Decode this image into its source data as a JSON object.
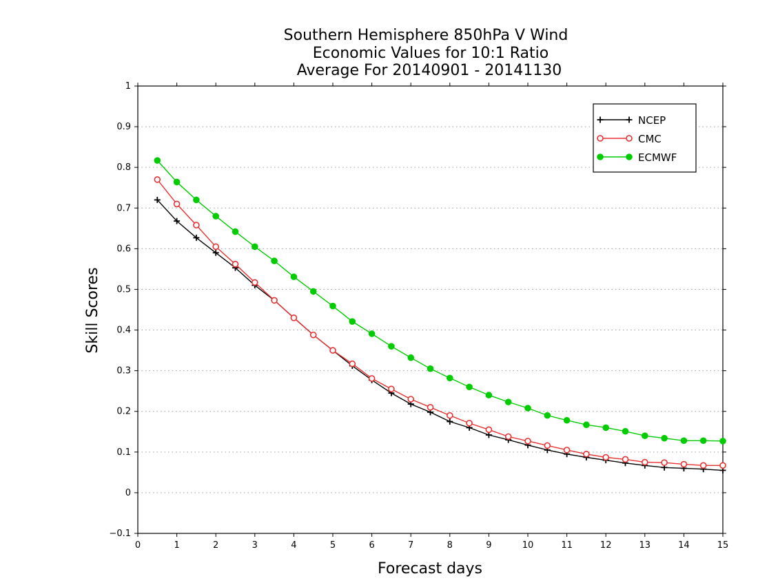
{
  "chart_data": {
    "type": "line",
    "title_lines": [
      "Southern Hemisphere 850hPa V Wind",
      "Economic Values for 10:1 Ratio",
      "Average For 20140901 - 20141130"
    ],
    "xlabel": "Forecast days",
    "ylabel": "Skill Scores",
    "xlim": [
      0,
      15
    ],
    "ylim": [
      -0.1,
      1
    ],
    "x_ticks": [
      "0",
      "1",
      "2",
      "3",
      "4",
      "5",
      "6",
      "7",
      "8",
      "9",
      "10",
      "11",
      "12",
      "13",
      "14",
      "15"
    ],
    "y_ticks": [
      "−0.1",
      "0",
      "0.1",
      "0.2",
      "0.3",
      "0.4",
      "0.5",
      "0.6",
      "0.7",
      "0.8",
      "0.9",
      "1"
    ],
    "grid": "horizontal-dotted",
    "legend_position": "top-right",
    "x": [
      0.5,
      1,
      1.5,
      2,
      2.5,
      3,
      3.5,
      4,
      4.5,
      5,
      5.5,
      6,
      6.5,
      7,
      7.5,
      8,
      8.5,
      9,
      9.5,
      10,
      10.5,
      11,
      11.5,
      12,
      12.5,
      13,
      13.5,
      14,
      14.5,
      15
    ],
    "series": [
      {
        "name": "NCEP",
        "color": "#000000",
        "marker": "plus",
        "values": [
          0.72,
          0.668,
          0.627,
          0.59,
          0.553,
          0.51,
          0.473,
          0.43,
          0.388,
          0.35,
          0.312,
          0.277,
          0.245,
          0.218,
          0.198,
          0.175,
          0.16,
          0.142,
          0.13,
          0.117,
          0.105,
          0.095,
          0.087,
          0.08,
          0.073,
          0.067,
          0.062,
          0.06,
          0.058,
          0.055
        ]
      },
      {
        "name": "CMC",
        "color": "#e83030",
        "marker": "open-circle",
        "values": [
          0.77,
          0.71,
          0.658,
          0.605,
          0.562,
          0.517,
          0.473,
          0.43,
          0.388,
          0.35,
          0.317,
          0.281,
          0.255,
          0.23,
          0.21,
          0.19,
          0.171,
          0.155,
          0.138,
          0.127,
          0.116,
          0.105,
          0.095,
          0.087,
          0.082,
          0.075,
          0.074,
          0.07,
          0.067,
          0.067
        ]
      },
      {
        "name": "ECMWF",
        "color": "#00cc00",
        "marker": "filled-circle",
        "values": [
          0.817,
          0.764,
          0.72,
          0.68,
          0.642,
          0.605,
          0.57,
          0.531,
          0.495,
          0.459,
          0.421,
          0.391,
          0.36,
          0.332,
          0.305,
          0.282,
          0.26,
          0.24,
          0.223,
          0.208,
          0.19,
          0.178,
          0.167,
          0.16,
          0.151,
          0.14,
          0.134,
          0.128,
          0.128,
          0.127
        ]
      }
    ]
  }
}
